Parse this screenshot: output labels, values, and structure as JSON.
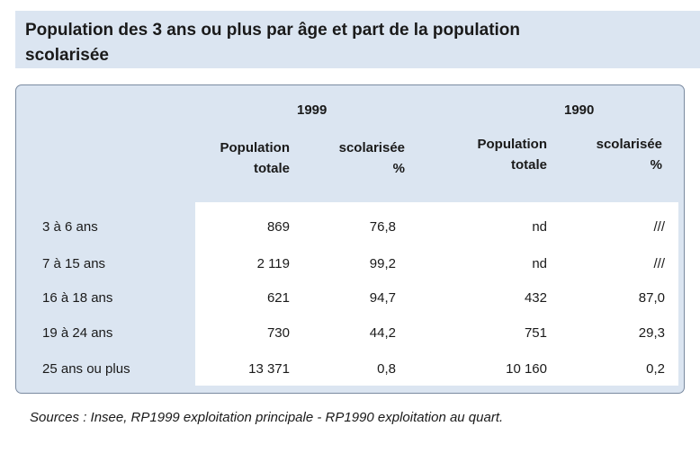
{
  "title": "Population des 3 ans ou plus par âge et part de la population scolarisée",
  "header": {
    "year_a": "1999",
    "year_b": "1990",
    "col_pop_line1": "Population",
    "col_pop_line2": "totale",
    "col_scol_line1": "scolarisée",
    "col_scol_line2": "%"
  },
  "rows": [
    {
      "age": "3 à 6 ans",
      "pop1999": "869",
      "scol1999": "76,8",
      "pop1990": "nd",
      "scol1990": "///"
    },
    {
      "age": "7 à 15 ans",
      "pop1999": "2 119",
      "scol1999": "99,2",
      "pop1990": "nd",
      "scol1990": "///"
    },
    {
      "age": "16 à 18 ans",
      "pop1999": "621",
      "scol1999": "94,7",
      "pop1990": "432",
      "scol1990": "87,0"
    },
    {
      "age": "19 à 24 ans",
      "pop1999": "730",
      "scol1999": "44,2",
      "pop1990": "751",
      "scol1990": "29,3"
    },
    {
      "age": "25 ans ou plus",
      "pop1999": "13 371",
      "scol1999": "0,8",
      "pop1990": "10 160",
      "scol1990": "0,2"
    }
  ],
  "source": "Sources : Insee, RP1999 exploitation principale - RP1990 exploitation au quart."
}
